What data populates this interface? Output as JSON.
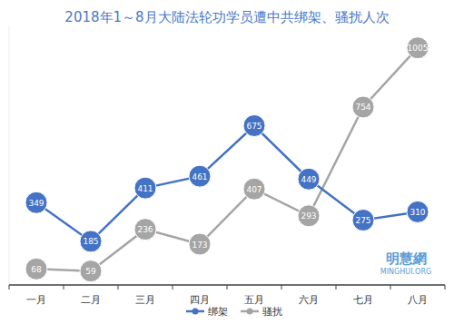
{
  "chart_data": {
    "type": "line",
    "title": "2018年1～8月大陆法轮功学员遭中共绑架、骚扰人次",
    "categories": [
      "一月",
      "二月",
      "三月",
      "四月",
      "五月",
      "六月",
      "七月",
      "八月"
    ],
    "series": [
      {
        "name": "绑架",
        "color": "#4472c4",
        "marker": "circle",
        "values": [
          349,
          185,
          411,
          461,
          675,
          449,
          275,
          310
        ]
      },
      {
        "name": "骚扰",
        "color": "#a5a5a5",
        "marker": "circle",
        "values": [
          68,
          59,
          236,
          173,
          407,
          293,
          754,
          1005
        ]
      }
    ],
    "ylim": [
      0,
      1100
    ],
    "tick_labels": "x",
    "data_labels": true,
    "legend": "bottom",
    "annotations": [
      "明慧網",
      "MINGHUI.ORG"
    ]
  }
}
